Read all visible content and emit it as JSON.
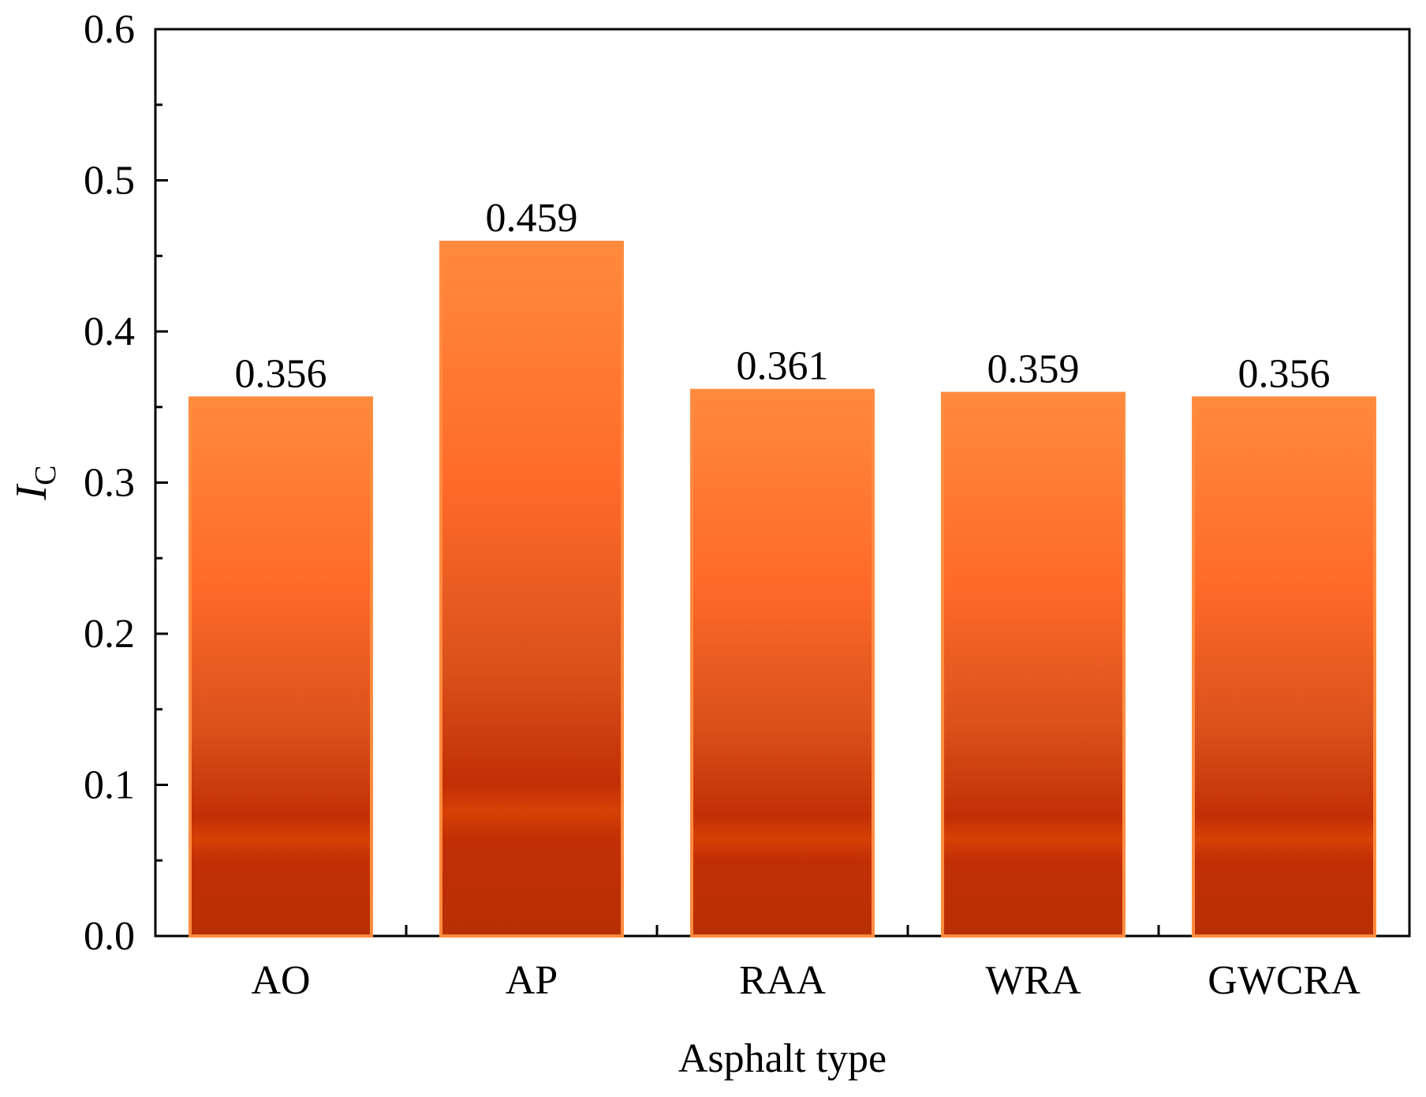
{
  "chart_data": {
    "type": "bar",
    "categories": [
      "AO",
      "AP",
      "RAA",
      "WRA",
      "GWCRA"
    ],
    "values": [
      0.356,
      0.459,
      0.361,
      0.359,
      0.356
    ],
    "data_labels": [
      "0.356",
      "0.459",
      "0.361",
      "0.359",
      "0.356"
    ],
    "title": "",
    "xlabel": "Asphalt type",
    "ylabel_main": "I",
    "ylabel_sub": "C",
    "ylim": [
      0.0,
      0.6
    ],
    "y_ticks": [
      "0.0",
      "0.1",
      "0.2",
      "0.3",
      "0.4",
      "0.5",
      "0.6"
    ],
    "grid": false,
    "colors": {
      "bar_top": "#ff8a3c",
      "bar_mid": "#ff6a2a",
      "bar_low": "#d9501a",
      "bar_base": "#c22f05",
      "bar_edge": "#ff8c40",
      "axis": "#000000"
    }
  }
}
